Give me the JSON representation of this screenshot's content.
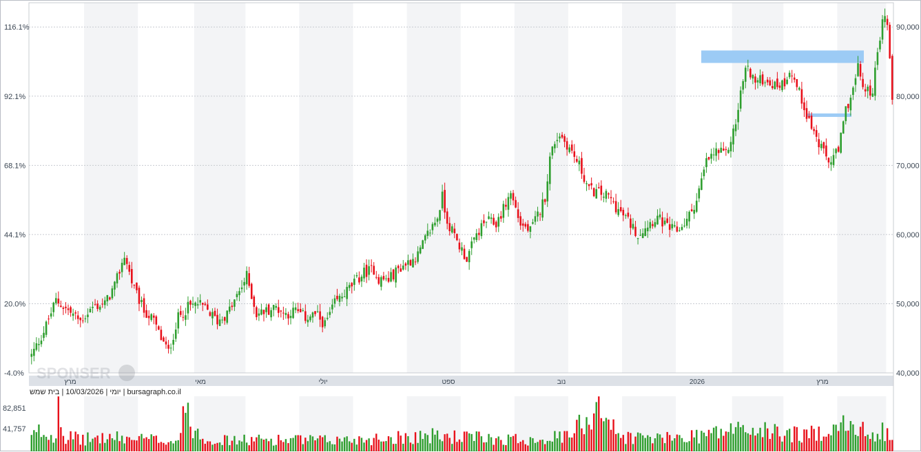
{
  "chart_data": {
    "type": "candlestick",
    "info_line": "יומי | 10/03/2026 | בית שמש | bursagraph.co.il",
    "watermark": "SPONSER",
    "price_axis_right": {
      "ticks": [
        "90,000",
        "80,000",
        "70,000",
        "60,000",
        "50,000",
        "40,000"
      ],
      "values": [
        90000,
        80000,
        70000,
        60000,
        50000,
        40000
      ],
      "ylim": [
        40000,
        93500
      ]
    },
    "percent_axis_left": {
      "ticks": [
        "116.1%",
        "92.1%",
        "68.1%",
        "44.1%",
        "20.0%",
        "-4.0%"
      ]
    },
    "volume_axis_left": {
      "ticks": [
        "82,851",
        "41,757"
      ],
      "values": [
        82851,
        41757
      ]
    },
    "month_labels": [
      "מרץ",
      "מאי",
      "יולי",
      "ספט",
      "נוב",
      "2026",
      "מרץ"
    ],
    "colors": {
      "up": "#2e9e2e",
      "down": "#e8101a",
      "zone": "#9ccbf5",
      "shade": "#f3f4f6"
    },
    "zones": [
      {
        "from": 84800,
        "to": 86600
      },
      {
        "from": 77000,
        "to": 77500
      }
    ],
    "close_anchors": [
      [
        0,
        42500
      ],
      [
        5,
        46000
      ],
      [
        10,
        50500
      ],
      [
        15,
        49000
      ],
      [
        20,
        47500
      ],
      [
        25,
        49500
      ],
      [
        30,
        50000
      ],
      [
        34,
        52500
      ],
      [
        38,
        57000
      ],
      [
        42,
        52000
      ],
      [
        46,
        49000
      ],
      [
        50,
        47500
      ],
      [
        53,
        45000
      ],
      [
        56,
        43000
      ],
      [
        60,
        48000
      ],
      [
        64,
        49500
      ],
      [
        68,
        50000
      ],
      [
        72,
        49000
      ],
      [
        76,
        47500
      ],
      [
        80,
        48500
      ],
      [
        84,
        51000
      ],
      [
        88,
        54000
      ],
      [
        92,
        48500
      ],
      [
        96,
        49000
      ],
      [
        100,
        49500
      ],
      [
        104,
        48500
      ],
      [
        108,
        49000
      ],
      [
        112,
        48000
      ],
      [
        116,
        48500
      ],
      [
        120,
        47000
      ],
      [
        124,
        50000
      ],
      [
        128,
        51500
      ],
      [
        132,
        53000
      ],
      [
        136,
        54500
      ],
      [
        140,
        55000
      ],
      [
        142,
        53500
      ],
      [
        146,
        53500
      ],
      [
        150,
        55000
      ],
      [
        154,
        56000
      ],
      [
        158,
        57000
      ],
      [
        162,
        60000
      ],
      [
        166,
        62500
      ],
      [
        168,
        65500
      ],
      [
        170,
        62000
      ],
      [
        174,
        59000
      ],
      [
        178,
        56500
      ],
      [
        182,
        60000
      ],
      [
        186,
        62000
      ],
      [
        190,
        61500
      ],
      [
        194,
        64500
      ],
      [
        196,
        66000
      ],
      [
        200,
        61500
      ],
      [
        204,
        60500
      ],
      [
        208,
        63500
      ],
      [
        210,
        65500
      ],
      [
        212,
        71000
      ],
      [
        214,
        73500
      ],
      [
        216,
        74500
      ],
      [
        220,
        72500
      ],
      [
        224,
        70000
      ],
      [
        228,
        66500
      ],
      [
        232,
        66000
      ],
      [
        236,
        65500
      ],
      [
        240,
        63500
      ],
      [
        244,
        62000
      ],
      [
        248,
        60000
      ],
      [
        252,
        61500
      ],
      [
        256,
        62500
      ],
      [
        260,
        61000
      ],
      [
        264,
        60500
      ],
      [
        268,
        62000
      ],
      [
        272,
        65000
      ],
      [
        276,
        70500
      ],
      [
        280,
        72000
      ],
      [
        284,
        71500
      ],
      [
        288,
        76000
      ],
      [
        290,
        80500
      ],
      [
        292,
        84000
      ],
      [
        294,
        83500
      ],
      [
        296,
        82000
      ],
      [
        300,
        82500
      ],
      [
        304,
        81500
      ],
      [
        308,
        82000
      ],
      [
        310,
        84000
      ],
      [
        314,
        80500
      ],
      [
        318,
        76500
      ],
      [
        322,
        73000
      ],
      [
        326,
        70500
      ],
      [
        330,
        72000
      ],
      [
        333,
        78000
      ],
      [
        336,
        81000
      ],
      [
        338,
        84000
      ],
      [
        341,
        80500
      ],
      [
        344,
        81000
      ],
      [
        346,
        86000
      ],
      [
        348,
        91500
      ],
      [
        350,
        90500
      ],
      [
        351,
        86000
      ],
      [
        352,
        79500
      ]
    ],
    "volume_anchors": [
      [
        0,
        28
      ],
      [
        3,
        40
      ],
      [
        6,
        34
      ],
      [
        10,
        30
      ],
      [
        11,
        95
      ],
      [
        13,
        32
      ],
      [
        20,
        24
      ],
      [
        30,
        28
      ],
      [
        40,
        26
      ],
      [
        60,
        22
      ],
      [
        62,
        78
      ],
      [
        70,
        28
      ],
      [
        80,
        22
      ],
      [
        100,
        24
      ],
      [
        120,
        22
      ],
      [
        140,
        26
      ],
      [
        160,
        32
      ],
      [
        180,
        28
      ],
      [
        200,
        24
      ],
      [
        220,
        30
      ],
      [
        232,
        95
      ],
      [
        240,
        30
      ],
      [
        260,
        26
      ],
      [
        280,
        38
      ],
      [
        290,
        46
      ],
      [
        300,
        40
      ],
      [
        310,
        36
      ],
      [
        320,
        34
      ],
      [
        328,
        58
      ],
      [
        336,
        44
      ],
      [
        340,
        40
      ],
      [
        350,
        42
      ],
      [
        352,
        30
      ]
    ]
  }
}
